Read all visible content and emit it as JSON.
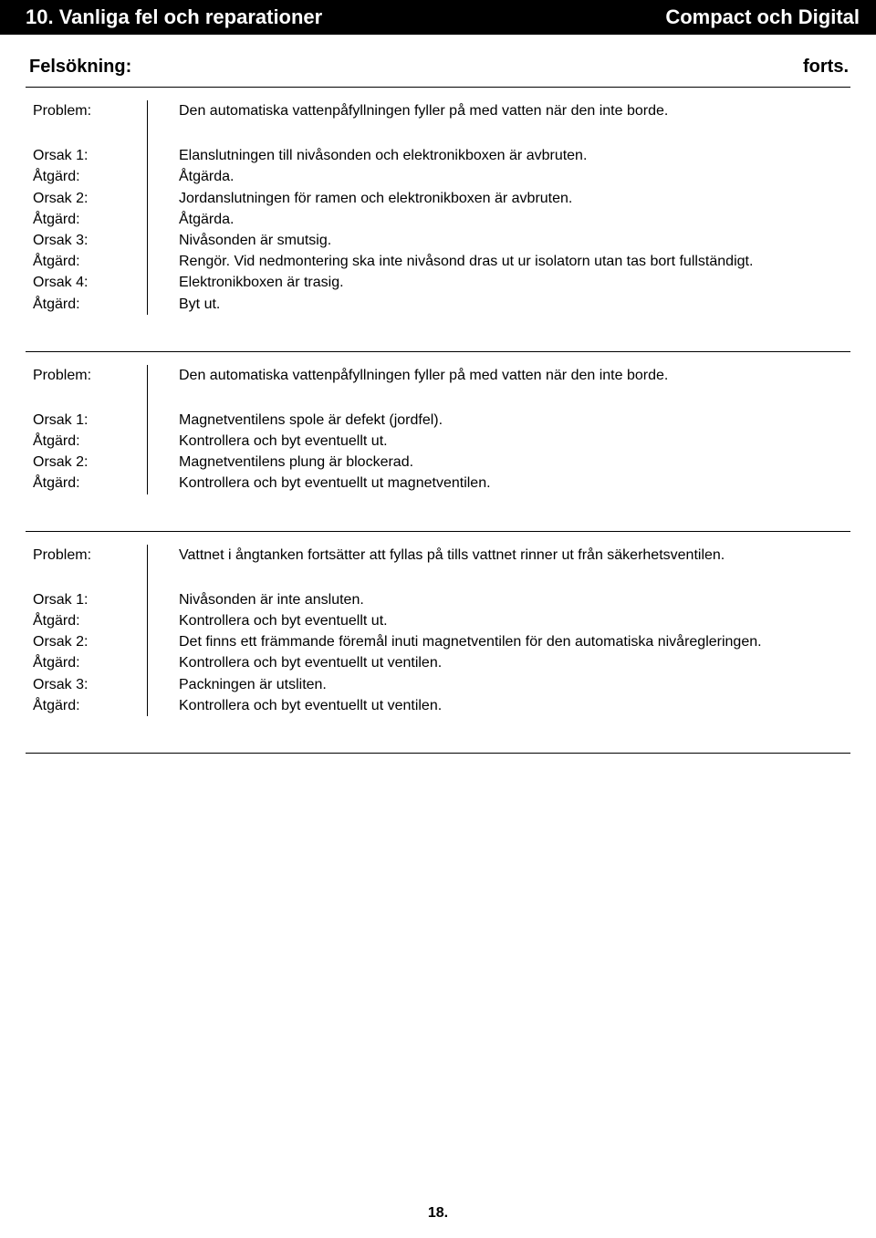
{
  "header": {
    "left": "10. Vanliga fel och reparationer",
    "right": "Compact och Digital"
  },
  "subheader": {
    "title": "Felsökning:",
    "cont": "forts."
  },
  "blocks": [
    {
      "problem_label": "Problem:",
      "problem_text": "Den automatiska vattenpåfyllningen fyller på med vatten när den inte borde.",
      "rows": [
        {
          "label": "Orsak 1:",
          "text": "Elanslutningen till nivåsonden och elektronikboxen är avbruten."
        },
        {
          "label": "Åtgärd:",
          "text": "Åtgärda."
        },
        {
          "label": "Orsak 2:",
          "text": "Jordanslutningen för ramen och elektronikboxen är avbruten."
        },
        {
          "label": "Åtgärd:",
          "text": "Åtgärda."
        },
        {
          "label": "Orsak 3:",
          "text": "Nivåsonden är smutsig."
        },
        {
          "label": "Åtgärd:",
          "text": "Rengör. Vid nedmontering ska inte nivåsond dras ut ur isolatorn utan tas bort fullständigt."
        },
        {
          "label": "Orsak 4:",
          "text": "Elektronikboxen är trasig."
        },
        {
          "label": "Åtgärd:",
          "text": "Byt ut."
        }
      ]
    },
    {
      "problem_label": "Problem:",
      "problem_text": "Den automatiska vattenpåfyllningen fyller på med vatten när den inte borde.",
      "rows": [
        {
          "label": "Orsak 1:",
          "text": "Magnetventilens spole är defekt (jordfel)."
        },
        {
          "label": "Åtgärd:",
          "text": "Kontrollera och byt eventuellt ut."
        },
        {
          "label": "Orsak 2:",
          "text": "Magnetventilens plung är blockerad."
        },
        {
          "label": "Åtgärd:",
          "text": "Kontrollera och byt eventuellt ut magnetventilen."
        }
      ]
    },
    {
      "problem_label": "Problem:",
      "problem_text": "Vattnet i ångtanken fortsätter att fyllas på tills vattnet rinner ut från säkerhetsventilen.",
      "rows": [
        {
          "label": "Orsak 1:",
          "text": "Nivåsonden är inte ansluten."
        },
        {
          "label": "Åtgärd:",
          "text": "Kontrollera och byt eventuellt ut."
        },
        {
          "label": "Orsak 2:",
          "text": "Det finns ett främmande föremål inuti magnetventilen för den automatiska nivåregleringen."
        },
        {
          "label": "Åtgärd:",
          "text": "Kontrollera och byt eventuellt ut ventilen."
        },
        {
          "label": "Orsak 3:",
          "text": "Packningen är utsliten."
        },
        {
          "label": "Åtgärd:",
          "text": "Kontrollera och byt eventuellt ut ventilen."
        }
      ]
    }
  ],
  "page_number": "18.",
  "colors": {
    "header_bg": "#000000",
    "header_text": "#ffffff",
    "body_text": "#000000",
    "border": "#000000",
    "page_bg": "#ffffff"
  },
  "typography": {
    "header_fontsize_pt": 17,
    "subheader_fontsize_pt": 15,
    "body_fontsize_pt": 12,
    "font_family": "Arial, Helvetica, sans-serif"
  }
}
